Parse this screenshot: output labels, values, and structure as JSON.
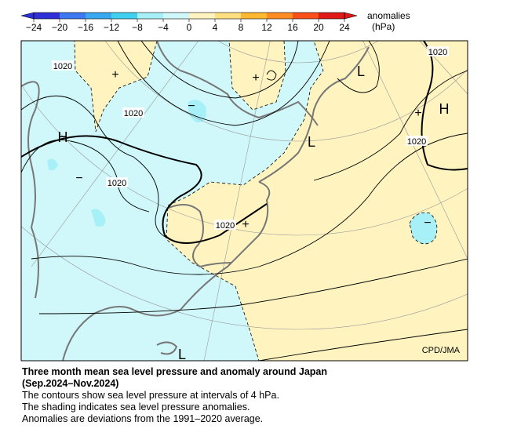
{
  "colorbar": {
    "ticks": [
      {
        "value": -24,
        "label": "−24"
      },
      {
        "value": -20,
        "label": "−20"
      },
      {
        "value": -16,
        "label": "−16"
      },
      {
        "value": -12,
        "label": "−12"
      },
      {
        "value": -8,
        "label": "−8"
      },
      {
        "value": -4,
        "label": "−4"
      },
      0,
      4,
      8,
      12,
      16,
      20,
      24
    ],
    "colors": [
      "#3030d8",
      "#3c78f0",
      "#38a8f0",
      "#40d0f0",
      "#a8f0f8",
      "#d0f8fa",
      "#fff4c0",
      "#ffe080",
      "#ffb830",
      "#ff8c20",
      "#f85018",
      "#e01818"
    ],
    "label": "anomalies",
    "unit": "(hPa)"
  },
  "map": {
    "contour_labels": [
      "1020",
      "1020",
      "1020",
      "1020",
      "1020",
      "1020"
    ],
    "centers": [
      "H",
      "H",
      "L",
      "L",
      "L"
    ],
    "markers": [
      "+",
      "+",
      "+",
      "+",
      "−",
      "−",
      "−"
    ],
    "credit": "CPD/JMA"
  },
  "caption": {
    "title": "Three month mean sea level pressure and anomaly around Japan",
    "period": "(Sep.2024–Nov.2024)",
    "lines": [
      "The contours show sea level pressure at intervals of 4 hPa.",
      "The shading indicates sea level pressure anomalies.",
      "Anomalies are deviations from the 1991–2020 average."
    ]
  }
}
